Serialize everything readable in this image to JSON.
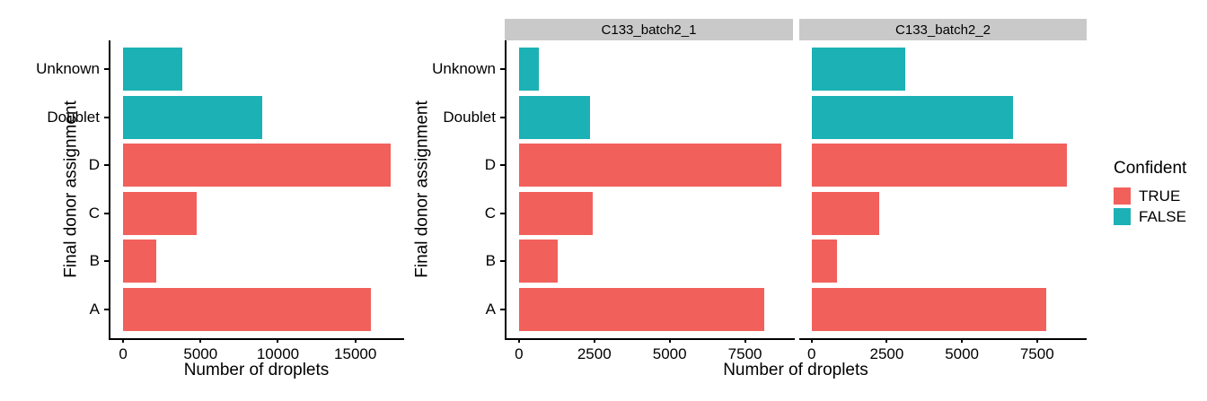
{
  "colors": {
    "confident_true": "#F2605C",
    "confident_false": "#1BB1B5",
    "strip_background": "#C9C9C9",
    "axis": "#000000",
    "text": "#000000",
    "background": "#FFFFFF"
  },
  "legend": {
    "title": "Confident",
    "position": "right",
    "items": [
      {
        "label": "TRUE",
        "color": "#F2605C"
      },
      {
        "label": "FALSE",
        "color": "#1BB1B5"
      }
    ]
  },
  "chart_data": [
    {
      "type": "bar",
      "orientation": "horizontal",
      "panel": "combined",
      "xlabel": "Number of droplets",
      "ylabel": "Final donor assignment",
      "categories_top_to_bottom": [
        "Unknown",
        "Doublet",
        "D",
        "C",
        "B",
        "A"
      ],
      "xticks": [
        0,
        5000,
        10000,
        15000
      ],
      "xlim": [
        0,
        18150
      ],
      "grid": false,
      "bars": [
        {
          "category": "Unknown",
          "value": 3800,
          "confident": "FALSE"
        },
        {
          "category": "Doublet",
          "value": 9000,
          "confident": "FALSE"
        },
        {
          "category": "D",
          "value": 17300,
          "confident": "TRUE"
        },
        {
          "category": "C",
          "value": 4750,
          "confident": "TRUE"
        },
        {
          "category": "B",
          "value": 2150,
          "confident": "TRUE"
        },
        {
          "category": "A",
          "value": 16000,
          "confident": "TRUE"
        }
      ]
    },
    {
      "type": "bar",
      "orientation": "horizontal",
      "panel": "faceted",
      "xlabel": "Number of droplets",
      "ylabel": "Final donor assignment",
      "categories_top_to_bottom": [
        "Unknown",
        "Doublet",
        "D",
        "C",
        "B",
        "A"
      ],
      "xticks": [
        0,
        2500,
        5000,
        7500
      ],
      "xlim": [
        0,
        9150
      ],
      "grid": false,
      "facets": [
        {
          "label": "C133_batch2_1",
          "bars": [
            {
              "category": "Unknown",
              "value": 650,
              "confident": "FALSE"
            },
            {
              "category": "Doublet",
              "value": 2350,
              "confident": "FALSE"
            },
            {
              "category": "D",
              "value": 8700,
              "confident": "TRUE"
            },
            {
              "category": "C",
              "value": 2450,
              "confident": "TRUE"
            },
            {
              "category": "B",
              "value": 1280,
              "confident": "TRUE"
            },
            {
              "category": "A",
              "value": 8150,
              "confident": "TRUE"
            }
          ]
        },
        {
          "label": "C133_batch2_2",
          "bars": [
            {
              "category": "Unknown",
              "value": 3100,
              "confident": "FALSE"
            },
            {
              "category": "Doublet",
              "value": 6700,
              "confident": "FALSE"
            },
            {
              "category": "D",
              "value": 8500,
              "confident": "TRUE"
            },
            {
              "category": "C",
              "value": 2250,
              "confident": "TRUE"
            },
            {
              "category": "B",
              "value": 850,
              "confident": "TRUE"
            },
            {
              "category": "A",
              "value": 7800,
              "confident": "TRUE"
            }
          ]
        }
      ]
    }
  ]
}
